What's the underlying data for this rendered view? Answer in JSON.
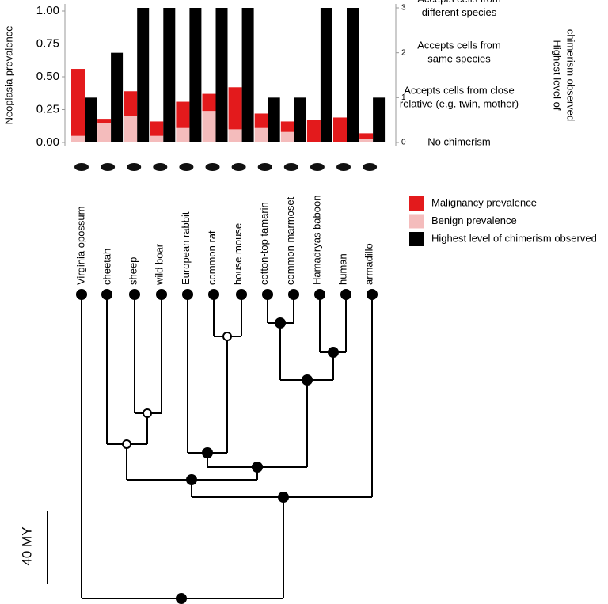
{
  "chart_data": {
    "type": "bar",
    "ylabel": "Neoplasia prevalence",
    "y2label_lines": [
      "Highest level of",
      "chimerism observed"
    ],
    "categories": [
      "Virginia opossum",
      "cheetah",
      "sheep",
      "wild boar",
      "European rabbit",
      "common rat",
      "house mouse",
      "cotton-top tamarin",
      "common marmoset",
      "Hamadryas baboon",
      "human",
      "armadillo"
    ],
    "series": [
      {
        "name": "Malignancy prevalence",
        "color": "#e31a1c",
        "stacked": true,
        "values": [
          0.51,
          0.03,
          0.19,
          0.11,
          0.2,
          0.13,
          0.32,
          0.11,
          0.08,
          0.17,
          0.19,
          0.04
        ]
      },
      {
        "name": "Benign prevalence",
        "color": "#f4bcbc",
        "stacked": true,
        "values": [
          0.05,
          0.15,
          0.2,
          0.05,
          0.11,
          0.24,
          0.1,
          0.11,
          0.08,
          0,
          0,
          0.03
        ]
      },
      {
        "name": "Highest level of chimerism observed",
        "color": "#000000",
        "axis": "y2",
        "values": [
          1,
          2,
          3,
          3,
          3,
          3,
          3,
          1,
          1,
          3,
          3,
          1
        ]
      }
    ],
    "ylim": [
      0,
      1.0
    ],
    "yticks": [
      {
        "value": 0,
        "label": "0.00"
      },
      {
        "value": 0.25,
        "label": "0.25"
      },
      {
        "value": 0.5,
        "label": "0.50"
      },
      {
        "value": 0.75,
        "label": "0.75"
      },
      {
        "value": 1.0,
        "label": "1.00"
      }
    ],
    "y2lim": [
      0,
      3
    ],
    "y2ticks": [
      0,
      1,
      2,
      3
    ],
    "y2_level_labels": [
      [
        "No chimerism"
      ],
      [
        "Accepts cells from close",
        "relative (e.g. twin, mother)"
      ],
      [
        "Accepts cells from",
        "same species"
      ],
      [
        "Accepts cells from",
        "different species"
      ]
    ],
    "scale_bar": "40 MY"
  }
}
